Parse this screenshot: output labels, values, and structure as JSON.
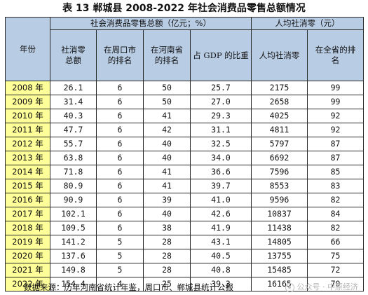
{
  "title": "表 13  郸城县 2008-2022 年社会消费品零售总额情况",
  "header": {
    "year": "年份",
    "group_total": "社会消费品零售总额（亿元；%）",
    "group_per_capita": "人均社消零（元）",
    "total": "社消零总额",
    "zhoukou_rank": "在周口市的排名",
    "henan_rank": "在河南省的排名",
    "gdp_share": "占 GDP 的比重",
    "per_capita": "人均社消零",
    "province_rank": "在全省的排名"
  },
  "rows": [
    {
      "year": "2008 年",
      "total": "26.1",
      "zhoukou": "6",
      "henan": "50",
      "gdp": "25.7",
      "per_capita": "2175",
      "province": "99"
    },
    {
      "year": "2009 年",
      "total": "31.4",
      "zhoukou": "6",
      "henan": "50",
      "gdp": "27.0",
      "per_capita": "2658",
      "province": "99"
    },
    {
      "year": "2010 年",
      "total": "40.3",
      "zhoukou": "6",
      "henan": "41",
      "gdp": "29.3",
      "per_capita": "4025",
      "province": "92"
    },
    {
      "year": "2011 年",
      "total": "47.7",
      "zhoukou": "6",
      "henan": "42",
      "gdp": "31.1",
      "per_capita": "4811",
      "province": "92"
    },
    {
      "year": "2012 年",
      "total": "55.7",
      "zhoukou": "6",
      "henan": "40",
      "gdp": "32.5",
      "per_capita": "5797",
      "province": "87"
    },
    {
      "year": "2013 年",
      "total": "63.8",
      "zhoukou": "6",
      "henan": "40",
      "gdp": "34.0",
      "per_capita": "6692",
      "province": "87"
    },
    {
      "year": "2014 年",
      "total": "71.8",
      "zhoukou": "6",
      "henan": "41",
      "gdp": "36.6",
      "per_capita": "7596",
      "province": "85"
    },
    {
      "year": "2015 年",
      "total": "80.9",
      "zhoukou": "6",
      "henan": "41",
      "gdp": "39.7",
      "per_capita": "8553",
      "province": "83"
    },
    {
      "year": "2016 年",
      "total": "90.9",
      "zhoukou": "6",
      "henan": "39",
      "gdp": "41.0",
      "per_capita": "9596",
      "province": "82"
    },
    {
      "year": "2017 年",
      "total": "102.1",
      "zhoukou": "6",
      "henan": "40",
      "gdp": "42.6",
      "per_capita": "10837",
      "province": "84"
    },
    {
      "year": "2018 年",
      "total": "109.5",
      "zhoukou": "6",
      "henan": "38",
      "gdp": "41.9",
      "per_capita": "11438",
      "province": "82"
    },
    {
      "year": "2019 年",
      "total": "141.2",
      "zhoukou": "5",
      "henan": "28",
      "gdp": "43.1",
      "per_capita": "14805",
      "province": "66"
    },
    {
      "year": "2020 年",
      "total": "137.6",
      "zhoukou": "5",
      "henan": "28",
      "gdp": "40.5",
      "per_capita": "13755",
      "province": "75"
    },
    {
      "year": "2021 年",
      "total": "149.8",
      "zhoukou": "5",
      "henan": "28",
      "gdp": "40.8",
      "per_capita": "15485",
      "province": "72"
    },
    {
      "year": "2022 年",
      "total": "154.4",
      "zhoukou": "4",
      "henan": "25",
      "gdp": "39.3",
      "per_capita": "16165",
      "province": "70"
    }
  ],
  "source": "数据来源：历年河南省统计年鉴，周口市、郸城县统计公报",
  "watermark": "公众号 · 中原经济",
  "colors": {
    "header_bg": "#b8cce4",
    "year_bg": "#ffff99",
    "border": "#2a2a2a"
  }
}
